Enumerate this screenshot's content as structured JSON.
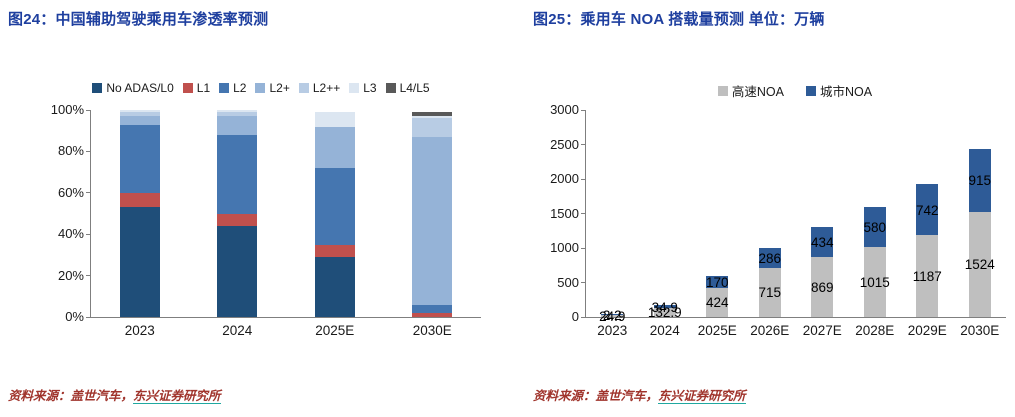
{
  "figure_left": {
    "title": "图24：中国辅助驾驶乘用车渗透率预测",
    "source": {
      "label": "资料来源：",
      "body": "盖世汽车，",
      "link": "东兴证券研究所"
    }
  },
  "figure_right": {
    "title": "图25：乘用车 NOA 搭载量预测 单位：万辆",
    "source": {
      "label": "资料来源：",
      "body": "盖世汽车，",
      "link": "东兴证券研究所"
    }
  },
  "colors": {
    "title_blue": "#1E3F9F",
    "axis_gray": "#7F7F7F",
    "source_red": "#A0342C",
    "source_underline_teal": "#20A8A0"
  },
  "chart_data": [
    {
      "type": "bar",
      "stacked": true,
      "percent": true,
      "title": "图24：中国辅助驾驶乘用车渗透率预测",
      "categories": [
        "2023",
        "2024",
        "2025E",
        "2030E"
      ],
      "series": [
        {
          "name": "No ADAS/L0",
          "color": "#1F4E79",
          "values": [
            53,
            44,
            29,
            0
          ]
        },
        {
          "name": "L1",
          "color": "#C0504D",
          "values": [
            7,
            6,
            6,
            2
          ]
        },
        {
          "name": "L2",
          "color": "#4576B0",
          "values": [
            33,
            38,
            37,
            4
          ]
        },
        {
          "name": "L2+",
          "color": "#95B3D7",
          "values": [
            4,
            9,
            20,
            81
          ]
        },
        {
          "name": "L2++",
          "color": "#B8CCE4",
          "values": [
            2,
            2,
            0,
            9
          ]
        },
        {
          "name": "L3",
          "color": "#DCE6F1",
          "values": [
            1,
            1,
            7,
            1
          ]
        },
        {
          "name": "L4/L5",
          "color": "#595959",
          "values": [
            0,
            0,
            0,
            2
          ]
        }
      ],
      "ylim": [
        0,
        100
      ],
      "yticks": [
        "0%",
        "20%",
        "40%",
        "60%",
        "80%",
        "100%"
      ],
      "legend_position": "top",
      "grid": false,
      "data_labels": false
    },
    {
      "type": "bar",
      "stacked": true,
      "title": "图25：乘用车 NOA 搭载量预测 单位：万辆",
      "categories": [
        "2023",
        "2024",
        "2025E",
        "2026E",
        "2027E",
        "2028E",
        "2029E",
        "2030E"
      ],
      "series": [
        {
          "name": "高速NOA",
          "color": "#BFBFBF",
          "values": [
            24.9,
            132.9,
            424,
            715,
            869,
            1015,
            1187,
            1524
          ],
          "labels": [
            "24.9",
            "132.9",
            "424",
            "715",
            "869",
            "1015",
            "1187",
            "1524"
          ]
        },
        {
          "name": "城市NOA",
          "color": "#2E5B97",
          "values": [
            2.2,
            34.9,
            170,
            286,
            434,
            580,
            742,
            915
          ],
          "labels": [
            "2.2",
            "34.9",
            "170",
            "286",
            "434",
            "580",
            "742",
            "915"
          ]
        }
      ],
      "ylim": [
        0,
        3000
      ],
      "yticks": [
        0,
        500,
        1000,
        1500,
        2000,
        2500,
        3000
      ],
      "legend_position": "top",
      "grid": false,
      "data_labels": true
    }
  ]
}
